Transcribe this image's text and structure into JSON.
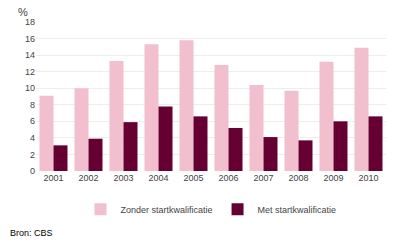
{
  "chart_data": {
    "type": "bar",
    "ylabel": "%",
    "annotations": [
      "Bron: CBS"
    ],
    "categories": [
      "2001",
      "2002",
      "2003",
      "2004",
      "2005",
      "2006",
      "2007",
      "2008",
      "2009",
      "2010"
    ],
    "series": [
      {
        "name": "Zonder startkwalificatie",
        "color": "#f2bfce",
        "values": [
          9.1,
          10.0,
          13.3,
          15.3,
          15.8,
          12.8,
          10.4,
          9.7,
          13.2,
          14.9
        ]
      },
      {
        "name": "Met startkwalificatie",
        "color": "#660033",
        "values": [
          3.1,
          3.9,
          5.9,
          7.8,
          6.6,
          5.2,
          4.1,
          3.7,
          6.0,
          6.6
        ]
      }
    ],
    "ylim": [
      0,
      18
    ],
    "yticks": [
      0,
      2,
      4,
      6,
      8,
      10,
      12,
      14,
      16,
      18
    ],
    "grid": true,
    "legend": "bottom"
  }
}
